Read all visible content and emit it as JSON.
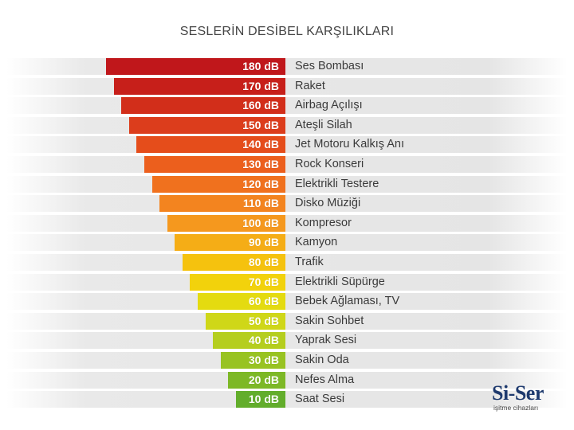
{
  "title": "SESLERİN DESİBEL KARŞILIKLARI",
  "rows": [
    {
      "db": "180 dB",
      "source": "Ses Bombası",
      "color": "#c0171b"
    },
    {
      "db": "170 dB",
      "source": "Raket",
      "color": "#c71f1a"
    },
    {
      "db": "160 dB",
      "source": "Airbag Açılışı",
      "color": "#d22e1a"
    },
    {
      "db": "150 dB",
      "source": "Ateşli Silah",
      "color": "#dc3d1c"
    },
    {
      "db": "140 dB",
      "source": "Jet Motoru Kalkış Anı",
      "color": "#e54d1b"
    },
    {
      "db": "130 dB",
      "source": "Rock Konseri",
      "color": "#ec5f1d"
    },
    {
      "db": "120 dB",
      "source": "Elektrikli Testere",
      "color": "#f0711e"
    },
    {
      "db": "110 dB",
      "source": "Disko Müziği",
      "color": "#f3841f"
    },
    {
      "db": "100 dB",
      "source": "Kompresor",
      "color": "#f5981e"
    },
    {
      "db": "90 dB",
      "source": "Kamyon",
      "color": "#f5ad16"
    },
    {
      "db": "80 dB",
      "source": "Trafik",
      "color": "#f5c20e"
    },
    {
      "db": "70 dB",
      "source": "Elektrikli Süpürge",
      "color": "#f2d20c"
    },
    {
      "db": "60 dB",
      "source": "Bebek Ağlaması, TV",
      "color": "#e4db10"
    },
    {
      "db": "50 dB",
      "source": "Sakin Sohbet",
      "color": "#cfd718"
    },
    {
      "db": "40 dB",
      "source": "Yaprak Sesi",
      "color": "#b5ce1e"
    },
    {
      "db": "30 dB",
      "source": "Sakin Oda",
      "color": "#98c322"
    },
    {
      "db": "20 dB",
      "source": "Nefes Alma",
      "color": "#7db826"
    },
    {
      "db": "10 dB",
      "source": "Saat Sesi",
      "color": "#62ad2b"
    }
  ],
  "logo": {
    "name": "Si-Ser",
    "tagline": "işitme cihazları",
    "color": "#1e3a6e"
  }
}
